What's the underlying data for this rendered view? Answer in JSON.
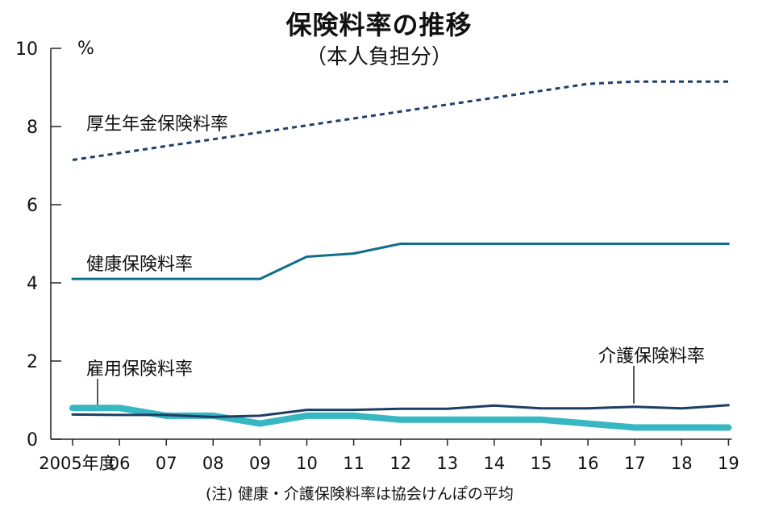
{
  "chart_data": {
    "type": "line",
    "title": "保険料率の推移",
    "subtitle": "（本人負担分）",
    "ylabel": "%",
    "note": "(注) 健康・介護保険料率は協会けんぽの平均",
    "categories": [
      "2005年度",
      "06",
      "07",
      "08",
      "09",
      "10",
      "11",
      "12",
      "13",
      "14",
      "15",
      "16",
      "17",
      "18",
      "19"
    ],
    "ylim": [
      0,
      10
    ],
    "yticks": [
      0,
      2,
      4,
      6,
      8,
      10
    ],
    "grid": false,
    "series": [
      {
        "name": "厚生年金保険料率",
        "color": "#1f3f6b",
        "style": "dashed",
        "values": [
          7.144,
          7.321,
          7.498,
          7.675,
          7.852,
          8.029,
          8.206,
          8.383,
          8.56,
          8.737,
          8.914,
          9.091,
          9.15,
          9.15,
          9.15
        ]
      },
      {
        "name": "健康保険料率",
        "color": "#0f6f8a",
        "style": "solid",
        "values": [
          4.1,
          4.1,
          4.1,
          4.1,
          4.1,
          4.67,
          4.75,
          5.0,
          5.0,
          5.0,
          5.0,
          5.0,
          5.0,
          5.0,
          5.0
        ]
      },
      {
        "name": "雇用保険料率",
        "color": "#36b7c2",
        "style": "thick",
        "values": [
          0.8,
          0.8,
          0.6,
          0.6,
          0.4,
          0.6,
          0.6,
          0.5,
          0.5,
          0.5,
          0.5,
          0.4,
          0.3,
          0.3,
          0.3
        ]
      },
      {
        "name": "介護保険料率",
        "color": "#1d3d62",
        "style": "solid",
        "values": [
          0.63,
          0.62,
          0.62,
          0.57,
          0.6,
          0.75,
          0.75,
          0.78,
          0.78,
          0.86,
          0.79,
          0.79,
          0.83,
          0.79,
          0.87
        ]
      }
    ]
  }
}
